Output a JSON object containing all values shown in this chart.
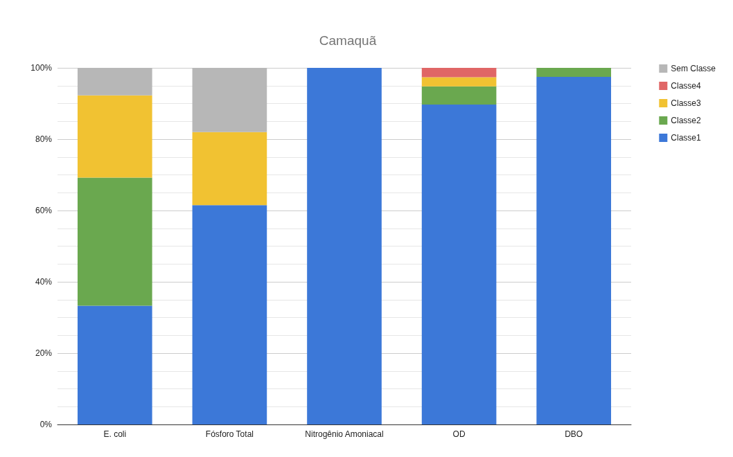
{
  "chart_data": {
    "type": "bar",
    "title": "Camaquã",
    "stacked": true,
    "categories": [
      "E. coli",
      "Fósforo Total",
      "Nitrogênio Amoniacal",
      "OD",
      "DBO"
    ],
    "series": [
      {
        "name": "Classe1",
        "color": "#3c78d8",
        "values": [
          33.3,
          61.5,
          100,
          89.7,
          97.5
        ]
      },
      {
        "name": "Classe2",
        "color": "#6aa84f",
        "values": [
          35.9,
          null,
          null,
          5.1,
          2.5
        ]
      },
      {
        "name": "Classe3",
        "color": "#f1c232",
        "values": [
          23.1,
          20.5,
          null,
          2.6,
          null
        ]
      },
      {
        "name": "Classe4",
        "color": "#e06666",
        "values": [
          null,
          null,
          null,
          2.6,
          null
        ]
      },
      {
        "name": "Sem Classe",
        "color": "#b7b7b7",
        "values": [
          7.7,
          18.0,
          null,
          null,
          null
        ]
      }
    ],
    "ylim": [
      0,
      100
    ],
    "yticks": [
      {
        "value": 0,
        "label": "0%"
      },
      {
        "value": 20,
        "label": "20%"
      },
      {
        "value": 40,
        "label": "40%"
      },
      {
        "value": 60,
        "label": "60%"
      },
      {
        "value": 80,
        "label": "80%"
      },
      {
        "value": 100,
        "label": "100%"
      }
    ],
    "grid": "y",
    "legend": "top right"
  }
}
